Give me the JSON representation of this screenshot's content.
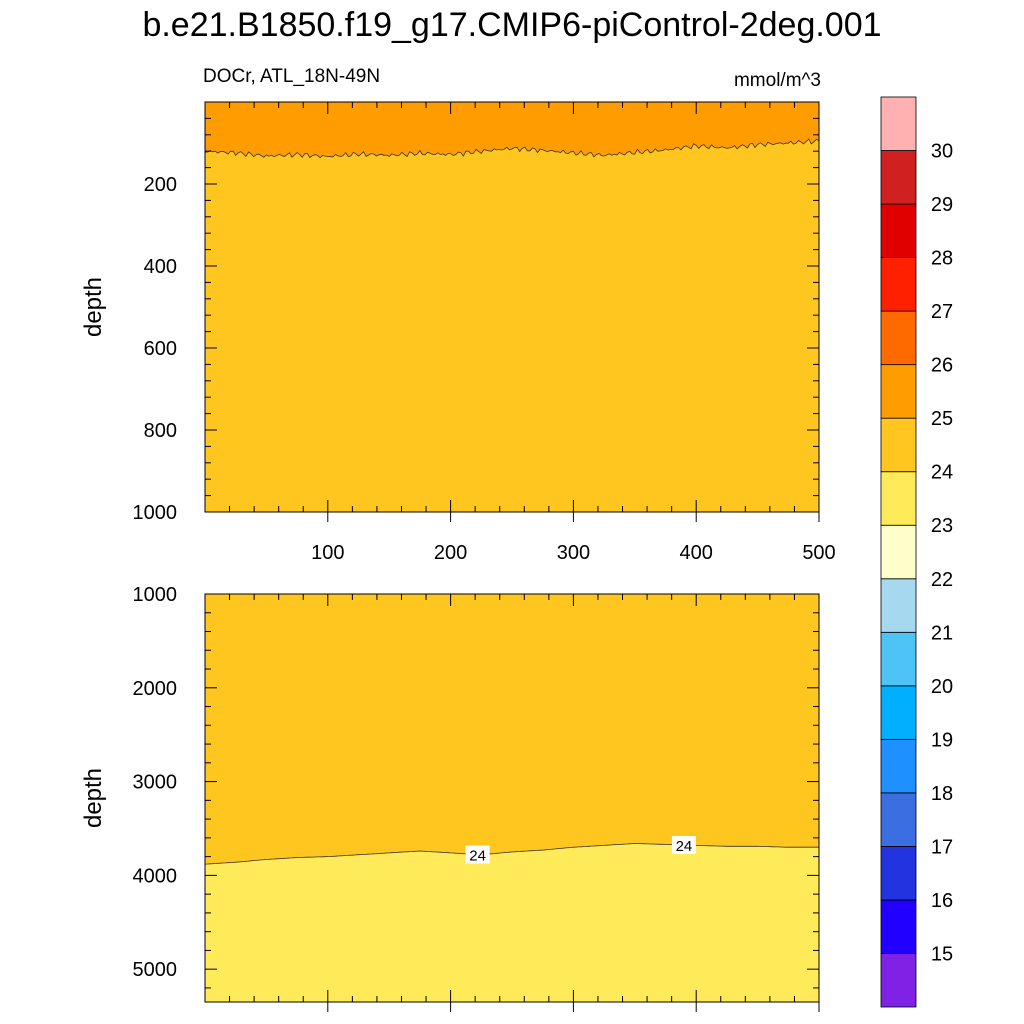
{
  "title": "b.e21.B1850.f19_g17.CMIP6-piControl-2deg.001",
  "subtitle_left": "DOCr, ATL_18N-49N",
  "subtitle_right": "mmol/m^3",
  "colorbar": {
    "colors": [
      "#7f22e5",
      "#2200ff",
      "#2233e0",
      "#3b6ee0",
      "#1e90ff",
      "#00b0ff",
      "#4dc4f5",
      "#a6d8ef",
      "#ffffcc",
      "#ffeb59",
      "#fec61e",
      "#ff9d00",
      "#ff6a00",
      "#ff2000",
      "#e00000",
      "#d02020",
      "#ffb0b0"
    ],
    "labels": [
      "15",
      "16",
      "17",
      "18",
      "19",
      "20",
      "21",
      "22",
      "23",
      "24",
      "25",
      "26",
      "27",
      "28",
      "29",
      "30"
    ]
  },
  "chart_data": [
    {
      "type": "heatmap",
      "ylabel": "depth",
      "xlim": [
        0,
        500
      ],
      "ylim": [
        0,
        1000
      ],
      "y_inverted": true,
      "xticks": [
        "100",
        "200",
        "300",
        "400",
        "500"
      ],
      "yticks": [
        "200",
        "400",
        "600",
        "800",
        "1000"
      ],
      "regions": [
        {
          "range": "25-26",
          "color": "#ff9d00",
          "depth_top": 0
        },
        {
          "range": "24-25",
          "color": "#fec61e",
          "depth_bottom": 1000
        }
      ],
      "boundary_contour_depth": {
        "x": [
          0,
          25,
          50,
          75,
          100,
          125,
          150,
          175,
          200,
          225,
          250,
          275,
          300,
          325,
          350,
          375,
          400,
          425,
          450,
          475,
          500
        ],
        "depth": [
          120,
          124,
          132,
          128,
          133,
          127,
          130,
          125,
          128,
          120,
          113,
          118,
          124,
          130,
          123,
          117,
          107,
          112,
          104,
          100,
          95
        ]
      }
    },
    {
      "type": "heatmap",
      "ylabel": "depth",
      "xlim": [
        0,
        500
      ],
      "ylim": [
        1000,
        5350
      ],
      "y_inverted": true,
      "yticks": [
        "1000",
        "2000",
        "3000",
        "4000",
        "5000"
      ],
      "regions": [
        {
          "range": "24-25",
          "color": "#fec61e",
          "depth_top": 1000
        },
        {
          "range": "23-24",
          "color": "#ffeb59",
          "depth_bottom": 5350
        }
      ],
      "contour": {
        "level": 24,
        "labels": [
          "24",
          "24"
        ],
        "label_x": [
          222,
          390
        ],
        "x": [
          0,
          25,
          50,
          75,
          100,
          125,
          150,
          175,
          200,
          225,
          250,
          275,
          300,
          325,
          350,
          375,
          400,
          425,
          450,
          475,
          500
        ],
        "depth": [
          3880,
          3860,
          3830,
          3810,
          3800,
          3780,
          3760,
          3740,
          3760,
          3780,
          3750,
          3730,
          3700,
          3680,
          3660,
          3670,
          3680,
          3690,
          3690,
          3700,
          3700
        ]
      }
    }
  ]
}
